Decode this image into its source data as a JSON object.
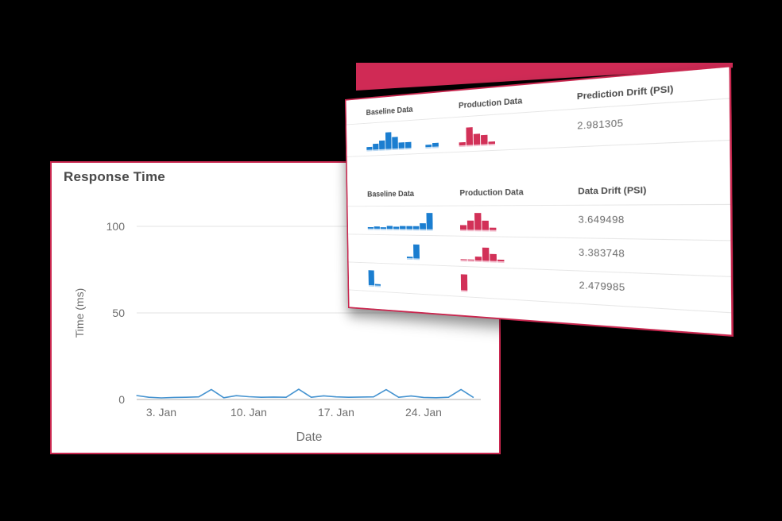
{
  "colors": {
    "background": "#000000",
    "card_border": "#c9274f",
    "backdrop_shape": "#d02a55",
    "baseline_bar": "#1b7ed0",
    "baseline_bar_light": "#bcd9f2",
    "production_bar": "#d23158",
    "production_bar_light": "#f3c3d2",
    "line": "#4593d0",
    "grid": "#e3e3e3",
    "zero_axis": "#d6d6d6",
    "axis_text": "#6f6f6f",
    "header_text": "#4a4a4a",
    "value_text": "#6b6b6b"
  },
  "chart_data": [
    {
      "type": "line",
      "title": "Response Time",
      "xlabel": "Date",
      "ylabel": "Time (ms)",
      "x_tick_labels": [
        "3. Jan",
        "10. Jan",
        "17. Jan",
        "24. Jan"
      ],
      "x_tick_days": [
        3,
        10,
        17,
        24
      ],
      "y_ticks": [
        0,
        50,
        100
      ],
      "ylim": [
        0,
        100
      ],
      "grid": true,
      "legend": false,
      "x_days": [
        1,
        2,
        3,
        4,
        5,
        6,
        7,
        8,
        9,
        10,
        11,
        12,
        13,
        14,
        15,
        16,
        17,
        18,
        19,
        20,
        21,
        22,
        23,
        24,
        25,
        26,
        27,
        28
      ],
      "values": [
        2.3,
        1.3,
        0.9,
        1.2,
        1.3,
        1.5,
        5.8,
        1.0,
        2.2,
        1.6,
        1.3,
        1.4,
        1.3,
        5.9,
        1.3,
        2.1,
        1.5,
        1.3,
        1.4,
        1.5,
        5.7,
        1.3,
        2.0,
        1.2,
        1.0,
        1.3,
        5.8,
        1.1
      ]
    },
    {
      "type": "table",
      "bar_scale_max": 10,
      "sections": [
        {
          "headers": [
            "Baseline Data",
            "Production Data",
            "Prediction Drift (PSI)"
          ],
          "rows": [
            {
              "baseline_hist": [
                1.5,
                3,
                4.5,
                9,
                6,
                3,
                3,
                null,
                null,
                1,
                2
              ],
              "production_hist": [
                1.5,
                9,
                5.5,
                4.5,
                1
              ],
              "value": "2.981305"
            }
          ]
        },
        {
          "headers": [
            "Baseline Data",
            "Production Data",
            "Data Drift (PSI)"
          ],
          "rows": [
            {
              "baseline_hist": [
                0.6,
                1.2,
                0.8,
                1.4,
                1.2,
                1.4,
                1.4,
                1.4,
                3,
                8.5
              ],
              "production_hist": [
                2.5,
                4.5,
                8.5,
                4.5,
                1
              ],
              "value": "3.649498"
            },
            {
              "baseline_hist": [
                null,
                null,
                null,
                null,
                null,
                null,
                0.6,
                7.5
              ],
              "production_hist": [
                0.5,
                0.5,
                2,
                6.5,
                3.5,
                0.7
              ],
              "value": "3.383748"
            },
            {
              "baseline_hist": [
                8,
                0.8
              ],
              "production_hist": [
                8
              ],
              "value": "2.479985"
            }
          ]
        }
      ]
    }
  ]
}
